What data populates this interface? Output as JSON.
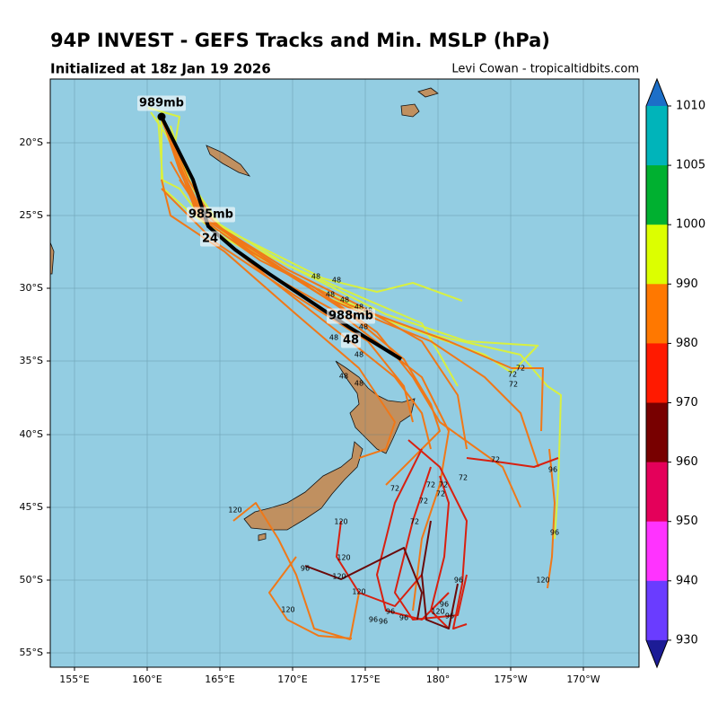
{
  "title": "94P INVEST - GEFS Tracks and Min. MSLP (hPa)",
  "subtitle": "Initialized at 18z Jan 19 2026",
  "credit": "Levi Cowan - tropicaltidbits.com",
  "map": {
    "x_labels": [
      "155°E",
      "160°E",
      "165°E",
      "170°E",
      "175°E",
      "180°",
      "175°W",
      "170°W"
    ],
    "y_labels": [
      "20°S",
      "25°S",
      "30°S",
      "35°S",
      "40°S",
      "45°S",
      "50°S",
      "55°S"
    ]
  },
  "colorbar": {
    "labels": [
      "1010",
      "1005",
      "1000",
      "990",
      "980",
      "970",
      "960",
      "950",
      "940",
      "930"
    ],
    "colors": [
      "#1c6fc8",
      "#00b4ba",
      "#00b030",
      "#dcff00",
      "#ff7800",
      "#ff1a00",
      "#780000",
      "#e4005a",
      "#ff33ff",
      "#6a3cff",
      "#1c1c96"
    ]
  },
  "annotations": [
    "989mb",
    "985mb",
    "24",
    "988mb",
    "48"
  ],
  "track_labels": [
    "48",
    "48",
    "48",
    "48",
    "48",
    "48",
    "48",
    "48",
    "48",
    "48",
    "48",
    "72",
    "72",
    "72",
    "72",
    "72",
    "72",
    "72",
    "72",
    "72",
    "72",
    "72",
    "96",
    "96",
    "96",
    "96",
    "96",
    "96",
    "96",
    "96",
    "96",
    "96",
    "120",
    "120",
    "120",
    "120",
    "120",
    "120",
    "120",
    "120"
  ]
}
